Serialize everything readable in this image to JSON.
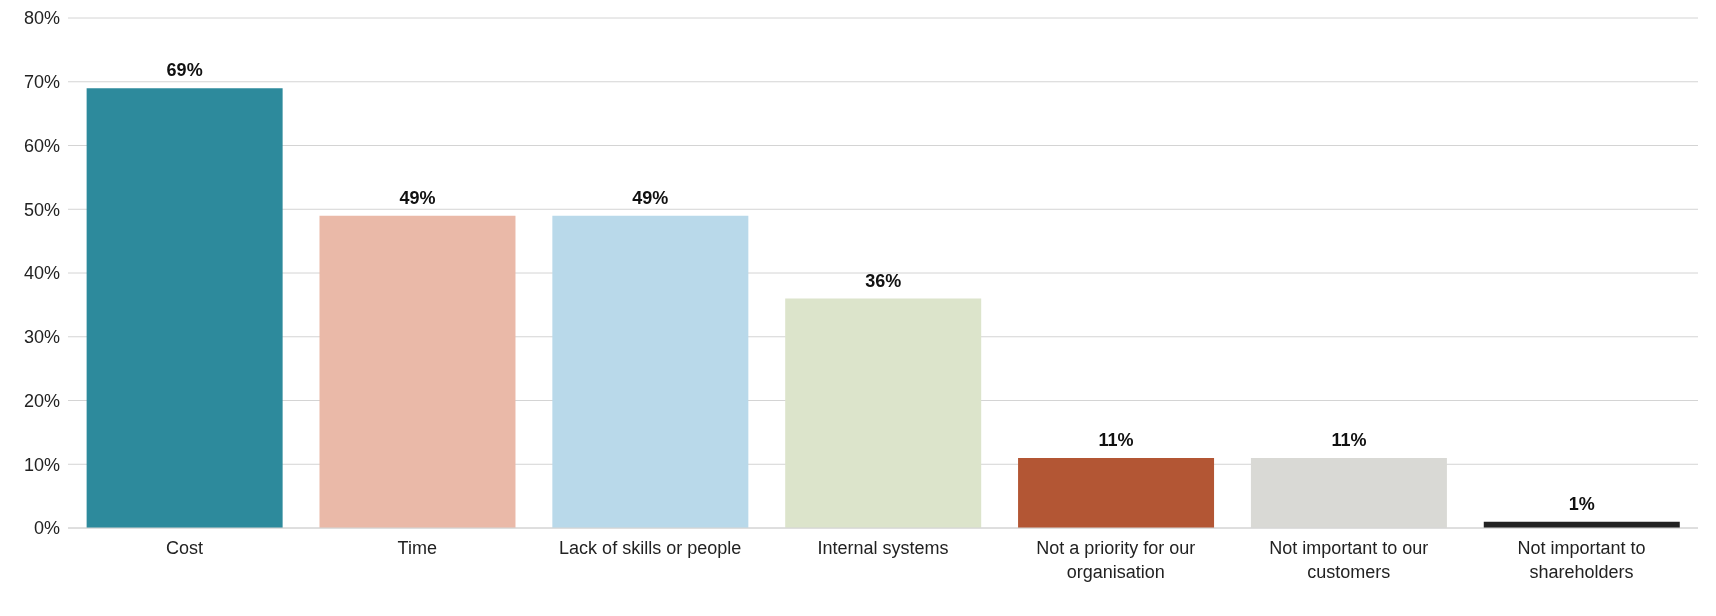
{
  "chart_data": {
    "type": "bar",
    "categories": [
      "Cost",
      "Time",
      "Lack of skills or people",
      "Internal systems",
      "Not a priority for our organisation",
      "Not important to our customers",
      "Not important to shareholders"
    ],
    "values": [
      69,
      49,
      49,
      36,
      11,
      11,
      1
    ],
    "value_labels": [
      "69%",
      "49%",
      "49%",
      "36%",
      "11%",
      "11%",
      "1%"
    ],
    "colors": [
      "#2d8a9c",
      "#eab9a8",
      "#b9d9ea",
      "#dce4cb",
      "#b35634",
      "#d9d9d5",
      "#222222"
    ],
    "ylim": [
      0,
      80
    ],
    "yticks": [
      {
        "value": 0,
        "label": "0%"
      },
      {
        "value": 10,
        "label": "10%"
      },
      {
        "value": 20,
        "label": "20%"
      },
      {
        "value": 30,
        "label": "30%"
      },
      {
        "value": 40,
        "label": "40%"
      },
      {
        "value": 50,
        "label": "50%"
      },
      {
        "value": 60,
        "label": "60%"
      },
      {
        "value": 70,
        "label": "70%"
      },
      {
        "value": 80,
        "label": "80%"
      }
    ],
    "grid": "y"
  }
}
